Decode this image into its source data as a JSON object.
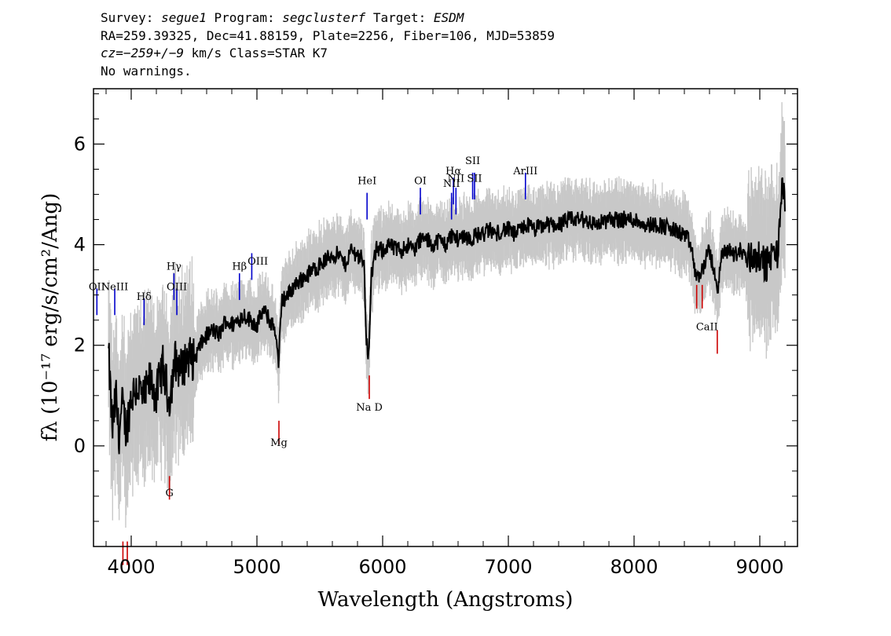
{
  "header": {
    "survey_label": "Survey:",
    "survey": "segue1",
    "program_label": "Program:",
    "program": "segclusterf",
    "target_label": "Target:",
    "target": "ESDM",
    "line2": "RA=259.39325, Dec=41.88159, Plate=2256, Fiber=106, MJD=53859",
    "cz_value": "cz=−259+/−9",
    "cz_units": "km/s",
    "class_text": "Class=STAR K7",
    "warnings": "No warnings."
  },
  "chart_data": {
    "type": "line",
    "xlabel": "Wavelength (Angstroms)",
    "ylabel": "fλ (10⁻¹⁷ erg/s/cm²/Ang)",
    "xlim": [
      3700,
      9300
    ],
    "ylim": [
      -2,
      7.1
    ],
    "x_ticks": [
      4000,
      5000,
      6000,
      7000,
      8000,
      9000
    ],
    "y_ticks": [
      0,
      2,
      4,
      6
    ],
    "grid": false,
    "colors": {
      "flux": "#000000",
      "error_band": "#c8c8c8",
      "emission": "#0000cc",
      "absorption": "#cc0000"
    },
    "series": [
      {
        "x": [
          3820,
          3850,
          3880,
          3900,
          3930,
          3960,
          4000,
          4050,
          4100,
          4150,
          4200,
          4250,
          4300,
          4350,
          4400,
          4450,
          4500,
          4550,
          4600,
          4650,
          4700,
          4750,
          4800,
          4850,
          4900,
          4950,
          5000,
          5050,
          5100,
          5150,
          5170,
          5200,
          5250,
          5300,
          5350,
          5400,
          5450,
          5500,
          5550,
          5600,
          5650,
          5700,
          5750,
          5800,
          5850,
          5870,
          5890,
          5910,
          5950,
          6000,
          6050,
          6100,
          6150,
          6200,
          6250,
          6300,
          6350,
          6400,
          6450,
          6500,
          6550,
          6600,
          6650,
          6700,
          6750,
          6800,
          6850,
          6900,
          6950,
          7000,
          7050,
          7100,
          7150,
          7200,
          7300,
          7400,
          7500,
          7600,
          7700,
          7800,
          7900,
          8000,
          8100,
          8200,
          8300,
          8400,
          8450,
          8498,
          8542,
          8600,
          8662,
          8700,
          8750,
          8800,
          8850,
          8900,
          8950,
          9000,
          9050,
          9100,
          9150,
          9180,
          9200
        ],
        "y": [
          1.8,
          0.3,
          1.0,
          0.2,
          0.8,
          0.3,
          1.0,
          1.2,
          0.9,
          1.3,
          1.0,
          1.6,
          0.9,
          1.7,
          1.5,
          1.8,
          1.7,
          2.0,
          2.2,
          2.3,
          2.2,
          2.5,
          2.4,
          2.5,
          2.6,
          2.5,
          2.4,
          2.7,
          2.5,
          2.3,
          1.6,
          2.9,
          3.0,
          3.2,
          3.3,
          3.4,
          3.5,
          3.6,
          3.7,
          3.8,
          3.8,
          3.6,
          3.9,
          3.8,
          3.7,
          2.2,
          1.7,
          3.4,
          3.9,
          3.9,
          4.0,
          3.9,
          3.9,
          4.0,
          3.9,
          4.1,
          4.1,
          4.0,
          4.1,
          4.0,
          4.2,
          4.1,
          4.2,
          4.1,
          4.2,
          4.2,
          4.3,
          4.2,
          4.3,
          4.3,
          4.2,
          4.3,
          4.4,
          4.3,
          4.4,
          4.4,
          4.5,
          4.5,
          4.4,
          4.5,
          4.5,
          4.5,
          4.4,
          4.4,
          4.3,
          4.2,
          4.0,
          3.3,
          3.5,
          3.9,
          3.1,
          3.8,
          3.9,
          3.8,
          3.9,
          3.7,
          3.8,
          3.7,
          3.6,
          3.8,
          3.9,
          5.4,
          4.8
        ]
      }
    ],
    "emission_lines": [
      {
        "label": "OII",
        "wave": 3727,
        "y": 2.6
      },
      {
        "label": "NeIII",
        "wave": 3869,
        "y": 2.6
      },
      {
        "label": "Hδ",
        "wave": 4102,
        "y": 2.4
      },
      {
        "label": "Hγ",
        "wave": 4340,
        "y": 2.9
      },
      {
        "label": "OIII",
        "wave": 4363,
        "y": 2.6
      },
      {
        "label": "Hβ",
        "wave": 4861,
        "y": 2.9
      },
      {
        "label": "OIII",
        "wave": 4959,
        "y": 3.3
      },
      {
        "label": "HeI",
        "wave": 5876,
        "y": 4.5
      },
      {
        "label": "OI",
        "wave": 6300,
        "y": 4.6
      },
      {
        "label": "NII",
        "wave": 6548,
        "y": 4.5
      },
      {
        "label": "Hα",
        "wave": 6563,
        "y": 4.8
      },
      {
        "label": "NII",
        "wave": 6583,
        "y": 4.6
      },
      {
        "label": "SII",
        "wave": 6716,
        "y": 4.9
      },
      {
        "label": "SII",
        "wave": 6731,
        "y": 4.9
      },
      {
        "label": "ArIII",
        "wave": 7136,
        "y": 4.9
      }
    ],
    "absorption_lines": [
      {
        "label": "G",
        "wave": 4304,
        "y": -0.6
      },
      {
        "label": "Mg",
        "wave": 5175,
        "y": 0.5
      },
      {
        "label": "Na D",
        "wave": 5894,
        "y": 1.4
      },
      {
        "label": "CaII",
        "wave": 8498,
        "y": 3.2
      },
      {
        "label": "CaII",
        "wave": 8542,
        "y": 3.2
      },
      {
        "label": "CaII",
        "wave": 8662,
        "y": 2.3
      },
      {
        "label": "CaII",
        "wave": 3934,
        "y": -1.9
      },
      {
        "label": "CaII",
        "wave": 3969,
        "y": -1.9
      }
    ],
    "labels": [
      {
        "text": "OII",
        "wave": 3727,
        "y": 3.1
      },
      {
        "text": "NeIII",
        "wave": 3869,
        "y": 3.1
      },
      {
        "text": "Hδ",
        "wave": 4102,
        "y": 2.9
      },
      {
        "text": "Hγ",
        "wave": 4340,
        "y": 3.5
      },
      {
        "text": "OIII",
        "wave": 4363,
        "y": 3.1
      },
      {
        "text": "Hβ",
        "wave": 4861,
        "y": 3.5
      },
      {
        "text": "OIII",
        "wave": 5007,
        "y": 3.6
      },
      {
        "text": "HeI",
        "wave": 5876,
        "y": 5.2
      },
      {
        "text": "OI",
        "wave": 6300,
        "y": 5.2
      },
      {
        "text": "NII",
        "wave": 6548,
        "y": 5.15
      },
      {
        "text": "Hα",
        "wave": 6563,
        "y": 5.4
      },
      {
        "text": "NII",
        "wave": 6583,
        "y": 5.25
      },
      {
        "text": "SII",
        "wave": 6716,
        "y": 5.6
      },
      {
        "text": "SII",
        "wave": 6731,
        "y": 5.25
      },
      {
        "text": "ArIII",
        "wave": 7136,
        "y": 5.4
      },
      {
        "text": "G",
        "wave": 4304,
        "y": -1.0
      },
      {
        "text": "Mg",
        "wave": 5175,
        "y": -0.0
      },
      {
        "text": "Na D",
        "wave": 5894,
        "y": 0.7
      },
      {
        "text": "CaII",
        "wave": 8580,
        "y": 2.3
      }
    ]
  }
}
